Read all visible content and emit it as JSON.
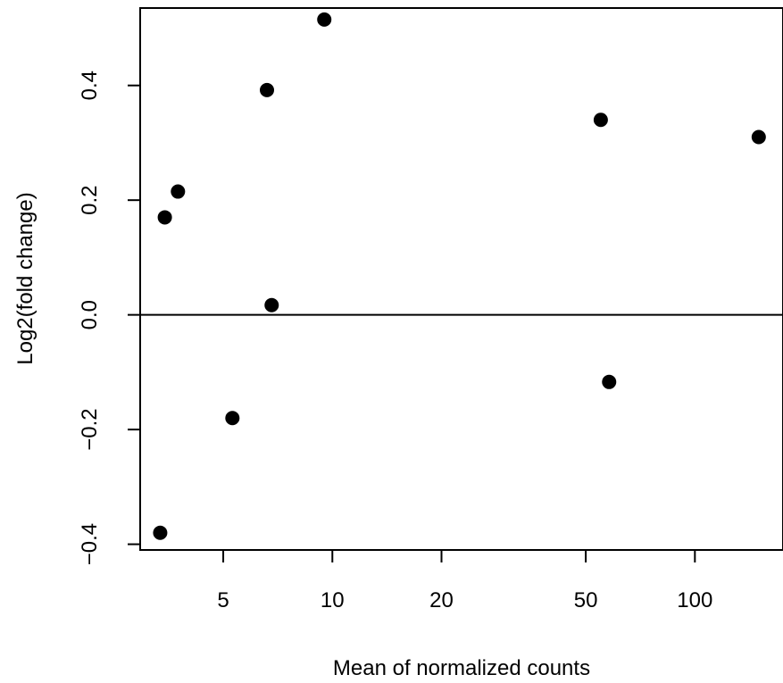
{
  "chart_data": {
    "type": "scatter",
    "title": "",
    "xlabel": "Mean of normalized counts",
    "ylabel": "Log2(fold change)",
    "x_scale": "log",
    "xlim": [
      2.95,
      175
    ],
    "ylim": [
      -0.41,
      0.535
    ],
    "x_ticks": [
      5,
      10,
      20,
      50,
      100
    ],
    "y_ticks": [
      -0.4,
      -0.2,
      0.0,
      0.2,
      0.4
    ],
    "y_tick_labels": [
      "−0.4",
      "−0.2",
      "0.0",
      "0.2",
      "0.4"
    ],
    "reference_line_y": 0,
    "grid": false,
    "marker_color": "#000000",
    "points": [
      {
        "x": 3.35,
        "y": -0.38
      },
      {
        "x": 3.45,
        "y": 0.17
      },
      {
        "x": 3.75,
        "y": 0.215
      },
      {
        "x": 5.3,
        "y": -0.18
      },
      {
        "x": 6.6,
        "y": 0.392
      },
      {
        "x": 6.8,
        "y": 0.017
      },
      {
        "x": 9.5,
        "y": 0.515
      },
      {
        "x": 55,
        "y": 0.34
      },
      {
        "x": 58,
        "y": -0.117
      },
      {
        "x": 150,
        "y": 0.31
      }
    ]
  }
}
